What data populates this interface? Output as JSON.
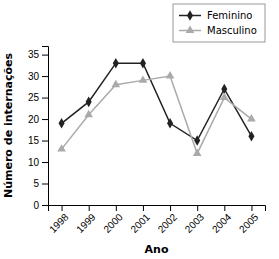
{
  "chart_data": {
    "type": "line",
    "x_label": "Ano",
    "y_label": "Número de internações",
    "categories": [
      "1998",
      "1999",
      "2000",
      "2001",
      "2002",
      "2003",
      "2004",
      "2005"
    ],
    "series": [
      {
        "name": "Feminino",
        "color": "#222222",
        "marker": "diamond",
        "values": [
          19,
          24,
          33,
          33,
          19,
          15,
          27,
          16
        ]
      },
      {
        "name": "Masculino",
        "color": "#aaaaaa",
        "marker": "triangle",
        "values": [
          13,
          21,
          28,
          29,
          30,
          12,
          25,
          20
        ]
      }
    ],
    "ylim": [
      0,
      37
    ],
    "yticks": [
      0,
      5,
      10,
      15,
      20,
      25,
      30,
      35
    ],
    "grid": false,
    "legend": "top right"
  }
}
